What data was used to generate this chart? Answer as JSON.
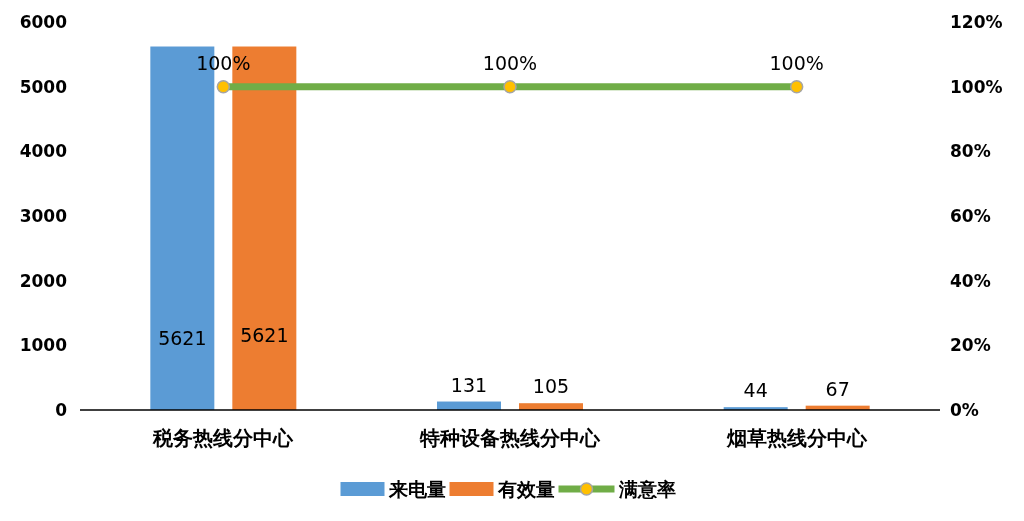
{
  "chart_data": {
    "type": "bar",
    "categories": [
      "税务热线分中心",
      "特种设备热线分中心",
      "烟草热线分中心"
    ],
    "series": [
      {
        "name": "来电量",
        "color": "#5b9bd5",
        "values": [
          5621,
          131,
          44
        ]
      },
      {
        "name": "有效量",
        "color": "#ed7d31",
        "values": [
          5621,
          105,
          67
        ]
      },
      {
        "name": "满意率",
        "type": "line",
        "axis": "y2",
        "color": "#70ad47",
        "marker": "circle",
        "values": [
          100,
          100,
          100
        ],
        "value_labels": [
          "100%",
          "100%",
          "100%"
        ]
      }
    ],
    "ylim": [
      0,
      6000
    ],
    "yticks": [
      0,
      1000,
      2000,
      3000,
      4000,
      5000,
      6000
    ],
    "y2lim": [
      0,
      120
    ],
    "y2ticks": [
      {
        "value": 0,
        "label": "0%"
      },
      {
        "value": 20,
        "label": "20%"
      },
      {
        "value": 40,
        "label": "40%"
      },
      {
        "value": 60,
        "label": "60%"
      },
      {
        "value": 80,
        "label": "80%"
      },
      {
        "value": 100,
        "label": "100%"
      },
      {
        "value": 120,
        "label": "120%"
      }
    ],
    "data_labels": true,
    "legend": "bottom",
    "grid": false
  }
}
